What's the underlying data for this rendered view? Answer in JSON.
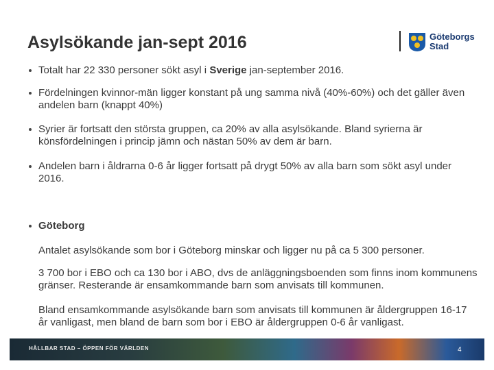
{
  "header": {
    "title": "Asylsökande jan-sept 2016",
    "logo": [
      "Göteborgs",
      "Stad"
    ]
  },
  "bullets": [
    [
      "Totalt  har 22 330 personer sökt asyl i ",
      "Sverige",
      " jan-september 2016."
    ],
    [
      "Fördelningen kvinnor-män ligger konstant på ung samma nivå (40%-60%) och det gäller även andelen barn (knappt 40%)"
    ],
    [
      "Syrier är fortsatt den största gruppen, ca 20% av alla asylsökande. Bland syrierna är könsfördelningen i princip jämn och nästan 50% av dem är barn."
    ],
    [
      "Andelen barn i åldrarna 0-6 år ligger fortsatt på drygt 50% av alla barn som sökt asyl under 2016."
    ]
  ],
  "section": {
    "heading": "Göteborg",
    "paragraphs": [
      "Antalet asylsökande som bor i Göteborg minskar och ligger nu på ca 5 300 personer.",
      "3 700 bor i EBO och ca 130 bor i ABO, dvs de anläggningsboenden som finns inom kommunens gränser. Resterande är ensamkommande barn som anvisats till kommunen.",
      "Bland ensamkommande asylsökande barn som anvisats till kommunen är åldergruppen 16-17 år vanligast, men bland de barn som bor i EBO är åldergruppen 0-6 år vanligast."
    ]
  },
  "footer": {
    "slogan": "HÅLLBAR STAD – ÖPPEN FÖR VÄRLDEN",
    "page": "4"
  }
}
